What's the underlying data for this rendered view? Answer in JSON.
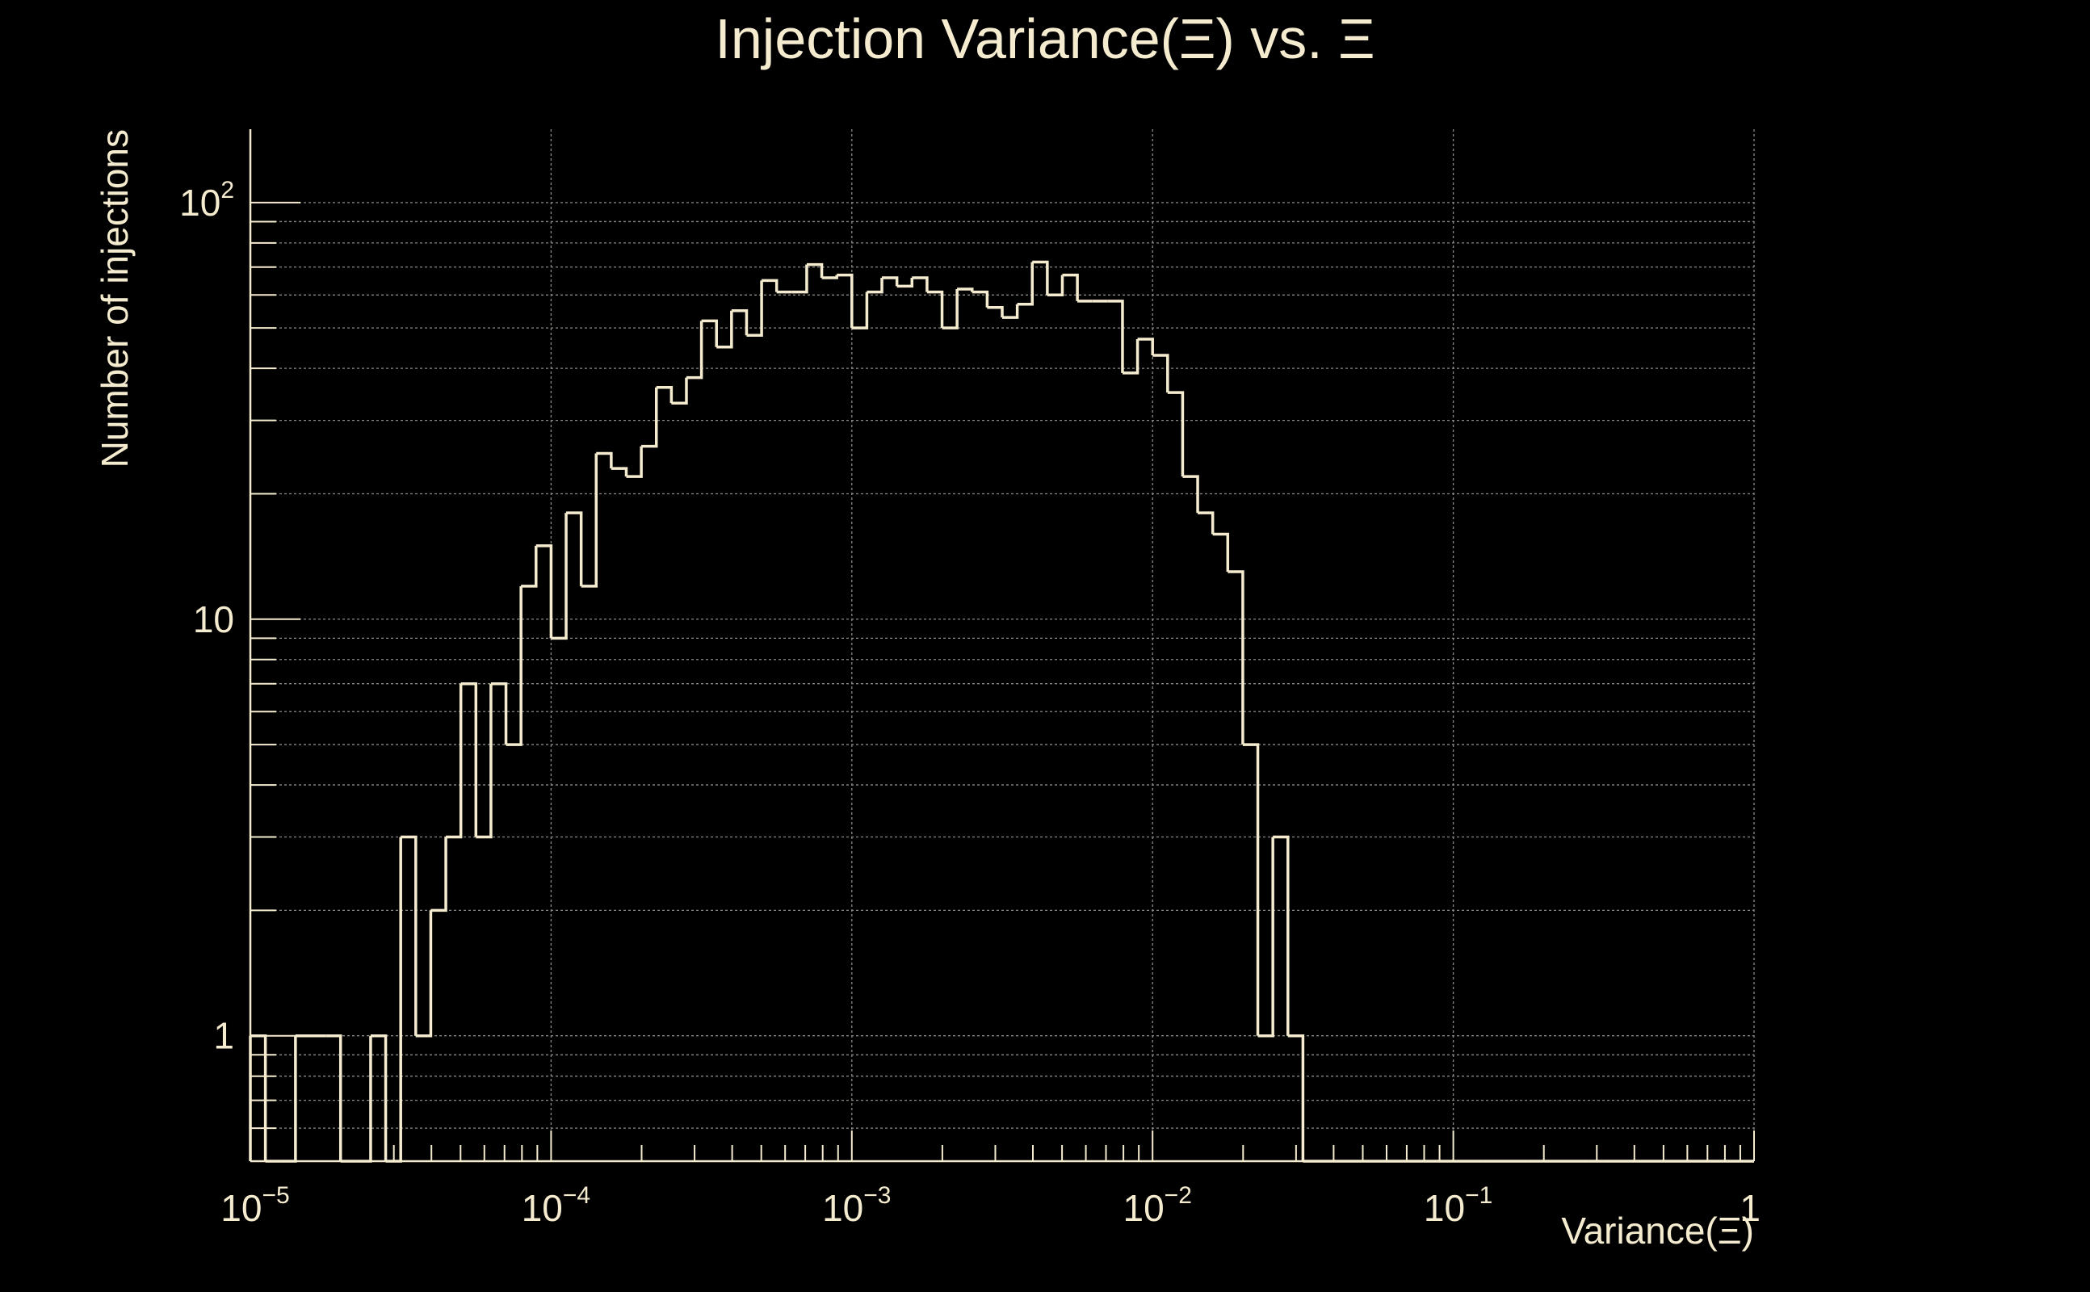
{
  "colors": {
    "background": "#000000",
    "foreground": "#f5ecd0",
    "grid": "#8a8a84"
  },
  "chart_data": {
    "type": "histogram",
    "title": "Injection Variance(Ξ) vs. Ξ",
    "xlabel": "Variance(Ξ)",
    "ylabel": "Number of injections",
    "x_scale": "log",
    "y_scale": "log",
    "xlim": [
      1e-05,
      1
    ],
    "ylim": [
      0.5,
      150
    ],
    "grid": true,
    "x_ticks": [
      {
        "value": 1e-05,
        "base": "10",
        "exp": "−5"
      },
      {
        "value": 0.0001,
        "base": "10",
        "exp": "−4"
      },
      {
        "value": 0.001,
        "base": "10",
        "exp": "−3"
      },
      {
        "value": 0.01,
        "base": "10",
        "exp": "−2"
      },
      {
        "value": 0.1,
        "base": "10",
        "exp": "−1"
      },
      {
        "value": 1,
        "base": "1",
        "exp": ""
      }
    ],
    "y_ticks": [
      {
        "value": 1,
        "base": "1",
        "exp": ""
      },
      {
        "value": 10,
        "base": "10",
        "exp": ""
      },
      {
        "value": 100,
        "base": "10",
        "exp": "2"
      }
    ],
    "bins_per_decade": 20,
    "bin_start": 1e-05,
    "counts": [
      1,
      0,
      0,
      1,
      1,
      1,
      0,
      0,
      1,
      0,
      3,
      1,
      2,
      3,
      7,
      3,
      7,
      5,
      12,
      15,
      9,
      18,
      12,
      25,
      23,
      22,
      26,
      36,
      33,
      38,
      52,
      45,
      55,
      48,
      65,
      61,
      61,
      71,
      66,
      67,
      50,
      61,
      66,
      63,
      66,
      61,
      50,
      62,
      61,
      56,
      53,
      57,
      72,
      60,
      67,
      58,
      58,
      58,
      39,
      47,
      43,
      35,
      22,
      18,
      16,
      13,
      5,
      1,
      3,
      1,
      0,
      0,
      0,
      0,
      0,
      0,
      0,
      0,
      0,
      0,
      0,
      0,
      0,
      0,
      0,
      0,
      0,
      0,
      0,
      0,
      0,
      0,
      0,
      0,
      0,
      0,
      0,
      0,
      0,
      0
    ]
  }
}
